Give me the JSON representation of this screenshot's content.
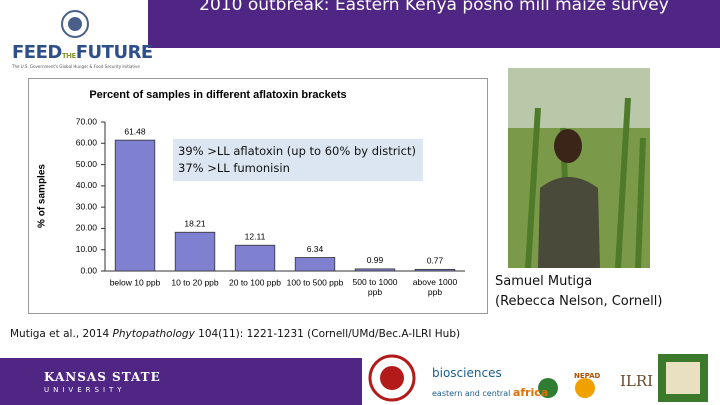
{
  "header": {
    "title": "2010 outbreak: Eastern Kenya posho mill maize survey",
    "logo": {
      "feed": "FEED",
      "the": "THE",
      "future": "FUTURE",
      "tagline": "The U.S. Government's Global Hunger & Food Security Initiative"
    }
  },
  "chart_data": {
    "type": "bar",
    "title": "Percent of samples in different aflatoxin brackets",
    "y_label": "% of samples",
    "categories": [
      "below 10 ppb",
      "10 to 20 ppb",
      "20 to 100 ppb",
      "100 to 500 ppb",
      "500 to 1000 ppb",
      "above 1000 ppb"
    ],
    "values": [
      61.48,
      18.21,
      12.11,
      6.34,
      0.99,
      0.77
    ],
    "color": "#8080d0",
    "ylim": [
      0,
      70
    ],
    "yticks": [
      {
        "value": 0,
        "label": "0.00"
      },
      {
        "value": 10,
        "label": "10.00"
      },
      {
        "value": 20,
        "label": "20.00"
      },
      {
        "value": 30,
        "label": "30.00"
      },
      {
        "value": 40,
        "label": "40.00"
      },
      {
        "value": 50,
        "label": "50.00"
      },
      {
        "value": 60,
        "label": "60.00"
      },
      {
        "value": 70,
        "label": "70.00"
      }
    ]
  },
  "callout": [
    "39% >LL aflatoxin (up to 60% by district)",
    "37% >LL fumonisin"
  ],
  "photo_caption": [
    "Samuel Mutiga",
    "(Rebecca Nelson, Cornell)"
  ],
  "citation": {
    "before": "Mutiga et al., 2014 ",
    "journal": "Phytopathology",
    "after": " 104(11): 1221-1231 (Cornell/UMd/Bec.A-ILRI Hub)"
  },
  "footer": {
    "kstate": "KANSAS STATE",
    "university": "UNIVERSITY",
    "biosciences": "biosciences",
    "beca_sub": "eastern and central",
    "africa": "africa",
    "nepad": "NEPAD",
    "ilri": "ILRI"
  }
}
